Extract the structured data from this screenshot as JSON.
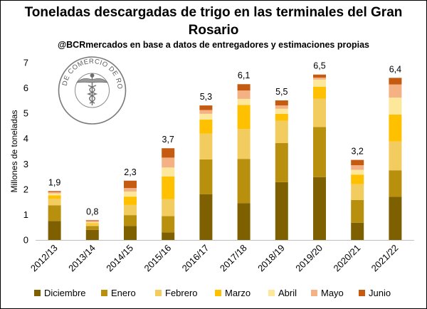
{
  "title_line1": "Toneladas descargadas de trigo en las terminales del Gran",
  "title_line2": "Rosario",
  "subtitle": "@BCRmercados en base a datos de entregadores y estimaciones propias",
  "logo": {
    "text": "BOLSA DE COMERCIO DE ROSARIO",
    "icon": "caduceus-icon"
  },
  "chart_data": {
    "type": "bar",
    "stacked": true,
    "title": "Toneladas descargadas de trigo en las terminales del Gran Rosario",
    "subtitle": "@BCRmercados en base a datos de entregadores y estimaciones propias",
    "xlabel": "",
    "ylabel": "Millones de toneladas",
    "ylim": [
      0,
      7
    ],
    "yticks": [
      0,
      1,
      2,
      3,
      4,
      5,
      6,
      7
    ],
    "grid": false,
    "legend_position": "bottom",
    "categories": [
      "2012/13",
      "2013/14",
      "2014/15",
      "2015/16",
      "2016/17",
      "2017/18",
      "2018/19",
      "2019/20",
      "2020/21",
      "2021/22"
    ],
    "totals": [
      "1,9",
      "0,8",
      "2,3",
      "3,7",
      "5,3",
      "6,1",
      "5,5",
      "6,5",
      "3,2",
      "6,4"
    ],
    "series": [
      {
        "name": "Diciembre",
        "color": "#7f6000",
        "values": [
          0.75,
          0.4,
          0.55,
          0.3,
          1.8,
          1.45,
          2.28,
          2.48,
          0.68,
          1.7
        ]
      },
      {
        "name": "Enero",
        "color": "#b8900d",
        "values": [
          0.62,
          0.15,
          0.43,
          0.64,
          1.38,
          1.75,
          1.55,
          1.98,
          0.9,
          1.05
        ]
      },
      {
        "name": "Febrero",
        "color": "#f2cc5e",
        "values": [
          0.26,
          0.07,
          0.4,
          0.67,
          1.02,
          1.18,
          0.88,
          1.12,
          0.62,
          1.14
        ]
      },
      {
        "name": "Marzo",
        "color": "#ffc000",
        "values": [
          0.13,
          0.04,
          0.33,
          0.9,
          0.55,
          0.95,
          0.27,
          0.47,
          0.38,
          1.06
        ]
      },
      {
        "name": "Abril",
        "color": "#fce79b",
        "values": [
          0.08,
          0.04,
          0.2,
          0.35,
          0.23,
          0.24,
          0.2,
          0.28,
          0.19,
          0.67
        ]
      },
      {
        "name": "Mayo",
        "color": "#f4b183",
        "values": [
          0.05,
          0.05,
          0.14,
          0.39,
          0.15,
          0.33,
          0.13,
          0.08,
          0.18,
          0.52
        ]
      },
      {
        "name": "Junio",
        "color": "#c55a11",
        "values": [
          0.04,
          0.03,
          0.29,
          0.37,
          0.18,
          0.25,
          0.2,
          0.12,
          0.21,
          0.26
        ]
      }
    ]
  }
}
